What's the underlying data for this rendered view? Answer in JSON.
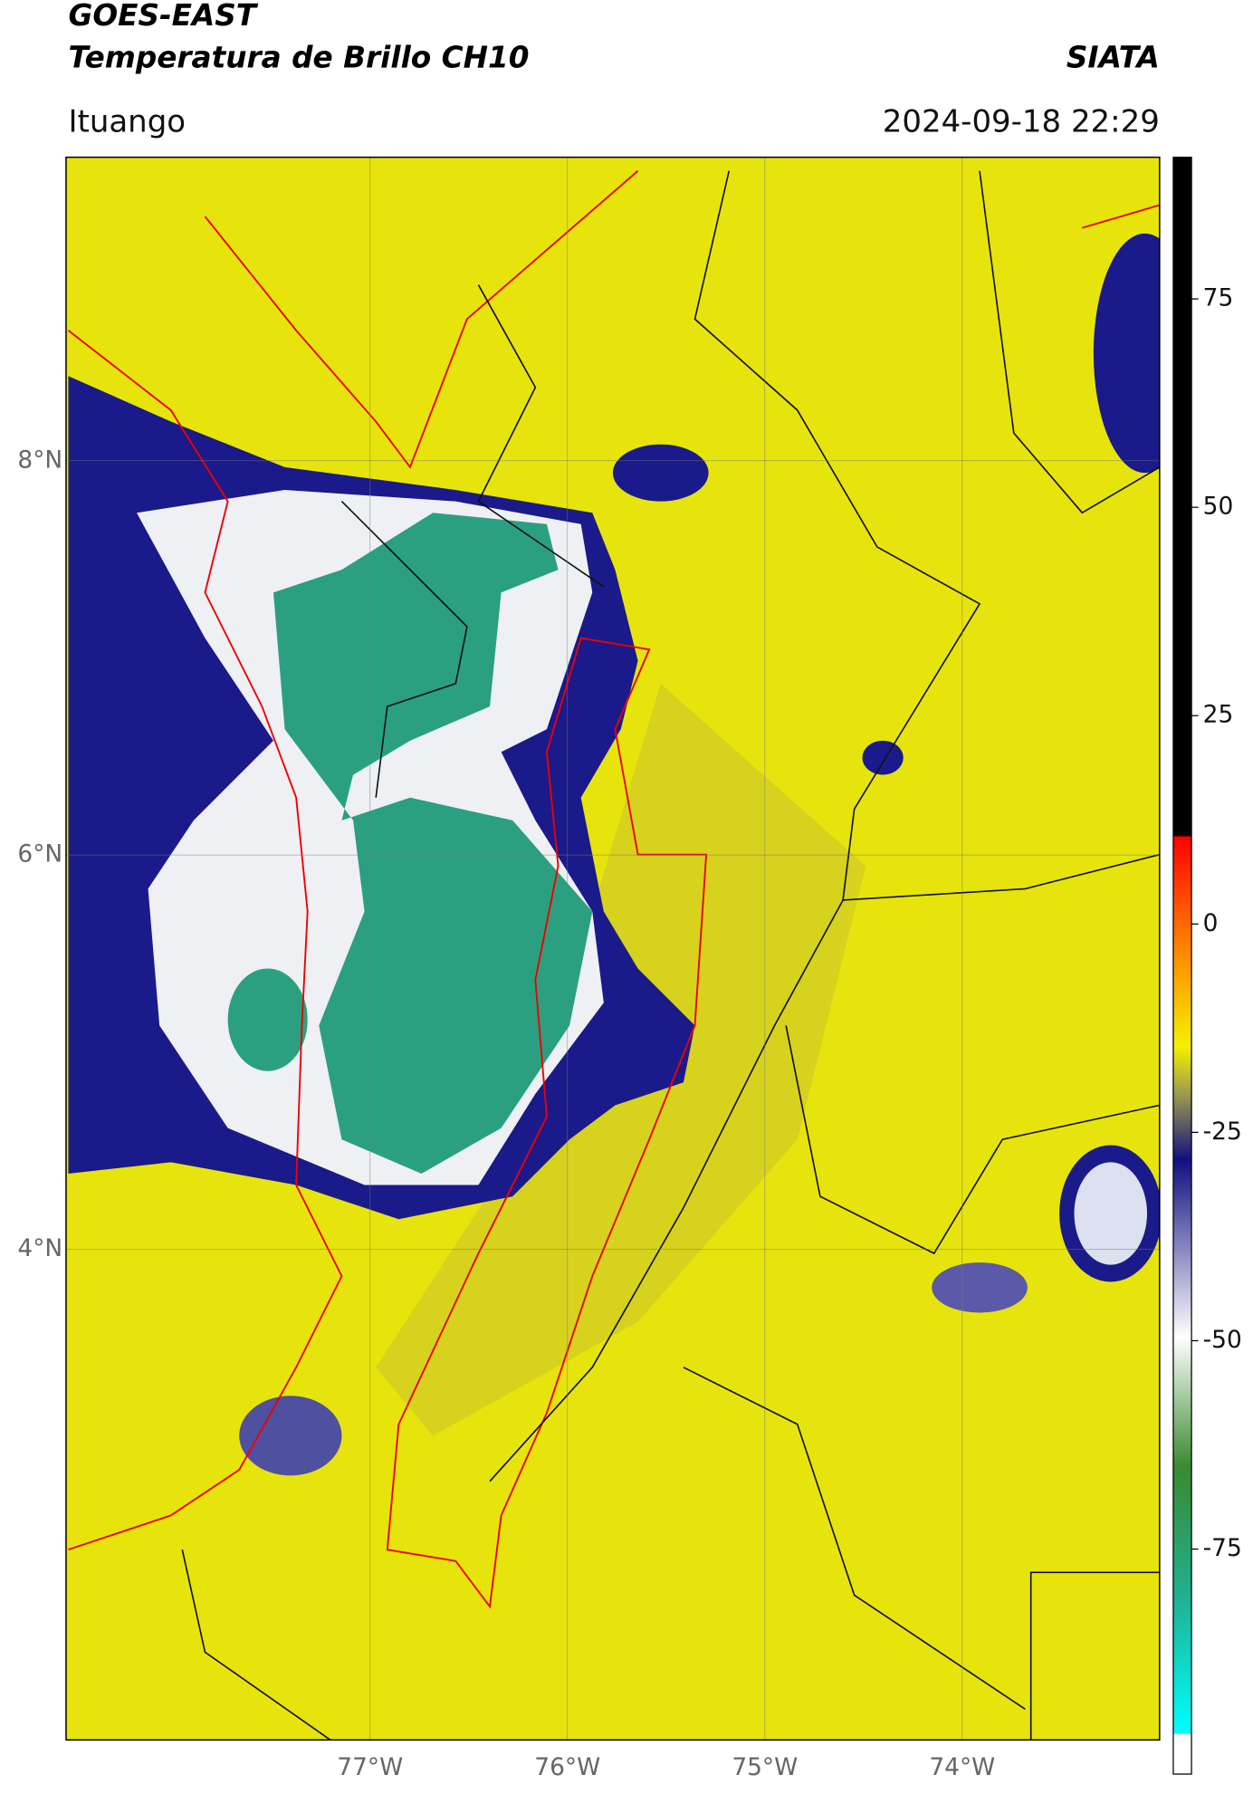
{
  "chart_data": {
    "type": "map",
    "title": "GOES-EAST",
    "subtitle": "Temperatura de Brillo CH10",
    "source": "SIATA",
    "location": "Ituango",
    "timestamp": "2024-09-18 22:29",
    "xlim": [
      -78.54,
      -73.0
    ],
    "ylim": [
      1.51,
      9.54
    ],
    "xticks": [
      {
        "value": -77,
        "label": "77°W"
      },
      {
        "value": -76,
        "label": "76°W"
      },
      {
        "value": -75,
        "label": "75°W"
      },
      {
        "value": -74,
        "label": "74°W"
      }
    ],
    "yticks": [
      {
        "value": 8,
        "label": "8°N"
      },
      {
        "value": 6,
        "label": "6°N"
      },
      {
        "value": 4,
        "label": "4°N"
      }
    ],
    "colorbar": {
      "lim": [
        -102,
        92
      ],
      "ticks": [
        75,
        50,
        25,
        0,
        -25,
        -50,
        -75
      ]
    },
    "grid": true
  }
}
